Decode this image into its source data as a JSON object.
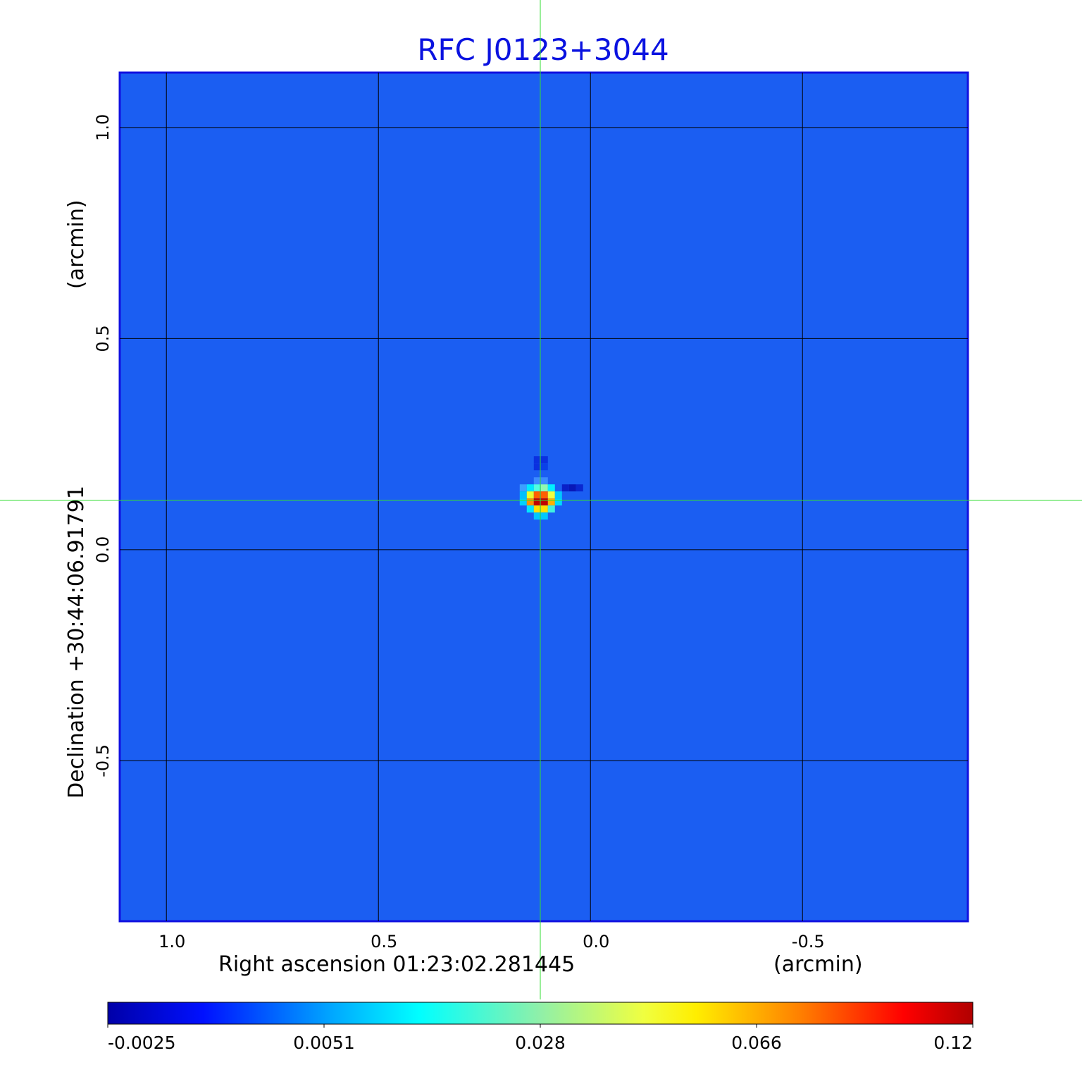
{
  "chart_data": {
    "type": "heatmap",
    "title": "RFC J0123+3044",
    "xlabel": "Right ascension  01:23:02.281445",
    "xlabel_unit": "(arcmin)",
    "ylabel": "Declination  +30:44:06.91791",
    "ylabel_unit": "(arcmin)",
    "x_ticks": [
      1.0,
      0.5,
      0.0,
      -0.5
    ],
    "x_tick_labels": [
      "1.0",
      "0.5",
      "0.0",
      "-0.5"
    ],
    "y_ticks": [
      1.0,
      0.5,
      0.0,
      -0.5
    ],
    "y_tick_labels": [
      "1.0",
      "0.5",
      "0.0",
      "-0.5"
    ],
    "xlim": [
      1.11,
      -0.89
    ],
    "ylim": [
      -0.88,
      1.13
    ],
    "grid": true,
    "crosshair": {
      "x": 0.117,
      "y": 0.115
    },
    "source_peak": {
      "x": 0.117,
      "y": 0.118
    },
    "colormap": "jet",
    "colorbar": {
      "orientation": "horizontal",
      "placement": "bottom",
      "tick_labels": [
        "-0.0025",
        "0.0051",
        "0.028",
        "0.066",
        "0.12"
      ],
      "range": [
        -0.0025,
        0.12
      ]
    },
    "colors": {
      "title": "#0a12e0",
      "crosshair": "#33dd33",
      "background_pixel": "#1b5ef2"
    }
  }
}
